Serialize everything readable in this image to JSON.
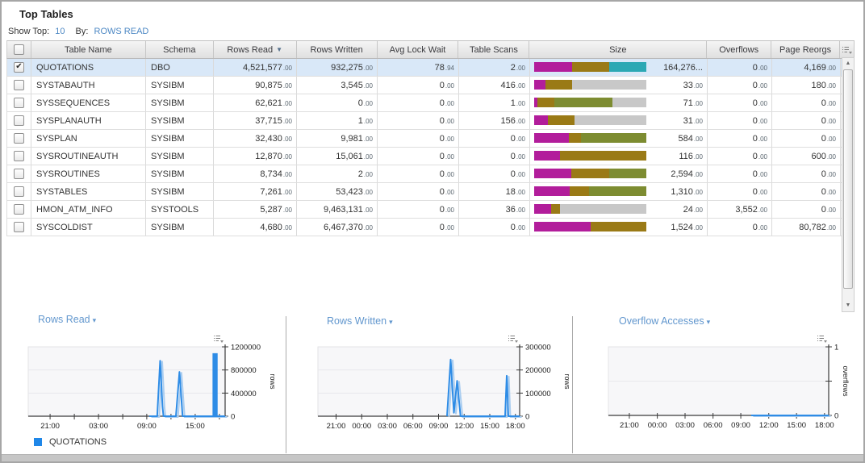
{
  "window": {
    "title": "Top Tables"
  },
  "controls": {
    "show_top_label": "Show Top:",
    "show_top_value": "10",
    "by_label": "By:",
    "by_value": "ROWS READ"
  },
  "table": {
    "columns": [
      "Table Name",
      "Schema",
      "Rows Read",
      "Rows Written",
      "Avg Lock Wait",
      "Table Scans",
      "Size",
      "Overflows",
      "Page Reorgs"
    ],
    "sorted_by": "Rows Read",
    "sort_direction": "desc",
    "rows": [
      {
        "checked": true,
        "selected": true,
        "table_name": "QUOTATIONS",
        "schema": "DBO",
        "rows_read": "4,521,577.00",
        "rows_written": "932,275.00",
        "avg_lock_wait": "78.94",
        "table_scans": "2.00",
        "size_value": "164,276...",
        "size_segments": [
          [
            "#b21d9b",
            34
          ],
          [
            "#9a7a16",
            33
          ],
          [
            "#2ba8b4",
            33
          ]
        ],
        "overflows": "0.00",
        "page_reorgs": "4,169.00"
      },
      {
        "checked": false,
        "selected": false,
        "table_name": "SYSTABAUTH",
        "schema": "SYSIBM",
        "rows_read": "90,875.00",
        "rows_written": "3,545.00",
        "avg_lock_wait": "0.00",
        "table_scans": "416.00",
        "size_value": "33.00",
        "size_segments": [
          [
            "#b21d9b",
            10
          ],
          [
            "#9a7a16",
            24
          ],
          [
            "#c8c8c8",
            66
          ]
        ],
        "overflows": "0.00",
        "page_reorgs": "180.00"
      },
      {
        "checked": false,
        "selected": false,
        "table_name": "SYSSEQUENCES",
        "schema": "SYSIBM",
        "rows_read": "62,621.00",
        "rows_written": "0.00",
        "avg_lock_wait": "0.00",
        "table_scans": "1.00",
        "size_value": "71.00",
        "size_segments": [
          [
            "#b21d9b",
            3
          ],
          [
            "#9a7a16",
            15
          ],
          [
            "#7d8c31",
            52
          ],
          [
            "#c8c8c8",
            30
          ]
        ],
        "overflows": "0.00",
        "page_reorgs": "0.00"
      },
      {
        "checked": false,
        "selected": false,
        "table_name": "SYSPLANAUTH",
        "schema": "SYSIBM",
        "rows_read": "37,715.00",
        "rows_written": "1.00",
        "avg_lock_wait": "0.00",
        "table_scans": "156.00",
        "size_value": "31.00",
        "size_segments": [
          [
            "#b21d9b",
            12
          ],
          [
            "#9a7a16",
            24
          ],
          [
            "#c8c8c8",
            64
          ]
        ],
        "overflows": "0.00",
        "page_reorgs": "0.00"
      },
      {
        "checked": false,
        "selected": false,
        "table_name": "SYSPLAN",
        "schema": "SYSIBM",
        "rows_read": "32,430.00",
        "rows_written": "9,981.00",
        "avg_lock_wait": "0.00",
        "table_scans": "0.00",
        "size_value": "584.00",
        "size_segments": [
          [
            "#b21d9b",
            31
          ],
          [
            "#9a7a16",
            11
          ],
          [
            "#7d8c31",
            58
          ]
        ],
        "overflows": "0.00",
        "page_reorgs": "0.00"
      },
      {
        "checked": false,
        "selected": false,
        "table_name": "SYSROUTINEAUTH",
        "schema": "SYSIBM",
        "rows_read": "12,870.00",
        "rows_written": "15,061.00",
        "avg_lock_wait": "0.00",
        "table_scans": "0.00",
        "size_value": "116.00",
        "size_segments": [
          [
            "#b21d9b",
            23
          ],
          [
            "#9a7a16",
            77
          ]
        ],
        "overflows": "0.00",
        "page_reorgs": "600.00"
      },
      {
        "checked": false,
        "selected": false,
        "table_name": "SYSROUTINES",
        "schema": "SYSIBM",
        "rows_read": "8,734.00",
        "rows_written": "2.00",
        "avg_lock_wait": "0.00",
        "table_scans": "0.00",
        "size_value": "2,594.00",
        "size_segments": [
          [
            "#b21d9b",
            33
          ],
          [
            "#9a7a16",
            34
          ],
          [
            "#7d8c31",
            33
          ]
        ],
        "overflows": "0.00",
        "page_reorgs": "0.00"
      },
      {
        "checked": false,
        "selected": false,
        "table_name": "SYSTABLES",
        "schema": "SYSIBM",
        "rows_read": "7,261.00",
        "rows_written": "53,423.00",
        "avg_lock_wait": "0.00",
        "table_scans": "18.00",
        "size_value": "1,310.00",
        "size_segments": [
          [
            "#b21d9b",
            32
          ],
          [
            "#9a7a16",
            17
          ],
          [
            "#7d8c31",
            51
          ]
        ],
        "overflows": "0.00",
        "page_reorgs": "0.00"
      },
      {
        "checked": false,
        "selected": false,
        "table_name": "HMON_ATM_INFO",
        "schema": "SYSTOOLS",
        "rows_read": "5,287.00",
        "rows_written": "9,463,131.00",
        "avg_lock_wait": "0.00",
        "table_scans": "36.00",
        "size_value": "24.00",
        "size_segments": [
          [
            "#b21d9b",
            15
          ],
          [
            "#9a7a16",
            8
          ],
          [
            "#c8c8c8",
            77
          ]
        ],
        "overflows": "3,552.00",
        "page_reorgs": "0.00"
      },
      {
        "checked": false,
        "selected": false,
        "table_name": "SYSCOLDIST",
        "schema": "SYSIBM",
        "rows_read": "4,680.00",
        "rows_written": "6,467,370.00",
        "avg_lock_wait": "0.00",
        "table_scans": "0.00",
        "size_value": "1,524.00",
        "size_segments": [
          [
            "#b21d9b",
            50
          ],
          [
            "#9a7a16",
            50
          ]
        ],
        "overflows": "0.00",
        "page_reorgs": "80,782.00"
      }
    ]
  },
  "chart_data": [
    {
      "type": "line",
      "title": "Rows Read",
      "ylabel": "rows",
      "ymax": 1200000,
      "yticks": [
        {
          "v": 1200000,
          "label": "1200000"
        },
        {
          "v": 800000,
          "label": "800000"
        },
        {
          "v": 400000,
          "label": "400000"
        },
        {
          "v": 0,
          "label": "0"
        }
      ],
      "xticks": [
        {
          "p": 0.111,
          "label": "21:00"
        },
        {
          "p": 0.234,
          "label": ""
        },
        {
          "p": 0.357,
          "label": "03:00"
        },
        {
          "p": 0.48,
          "label": ""
        },
        {
          "p": 0.602,
          "label": "09:00"
        },
        {
          "p": 0.725,
          "label": ""
        },
        {
          "p": 0.848,
          "label": "15:00"
        },
        {
          "p": 0.971,
          "label": ""
        }
      ],
      "series": [
        {
          "name": "QUOTATIONS",
          "color": "#2e8ce6",
          "points": [
            [
              0.615,
              0
            ],
            [
              0.655,
              0
            ],
            [
              0.67,
              960000
            ],
            [
              0.682,
              160000
            ],
            [
              0.687,
              0
            ],
            [
              0.75,
              0
            ],
            [
              0.768,
              766000
            ],
            [
              0.784,
              0
            ],
            [
              1,
              0
            ]
          ]
        }
      ],
      "bars": [
        {
          "x0": 0.936,
          "x1": 0.962,
          "v": 1090000
        }
      ],
      "legend": {
        "label": "QUOTATIONS",
        "color": "#1f87e8"
      }
    },
    {
      "type": "line",
      "title": "Rows Written",
      "ylabel": "rows",
      "ymax": 300000,
      "yticks": [
        {
          "v": 300000,
          "label": "300000"
        },
        {
          "v": 200000,
          "label": "200000"
        },
        {
          "v": 100000,
          "label": "100000"
        },
        {
          "v": 0,
          "label": "0"
        }
      ],
      "xticks": [
        {
          "p": 0.09,
          "label": "21:00"
        },
        {
          "p": 0.217,
          "label": "00:00"
        },
        {
          "p": 0.344,
          "label": "03:00"
        },
        {
          "p": 0.471,
          "label": "06:00"
        },
        {
          "p": 0.598,
          "label": "09:00"
        },
        {
          "p": 0.725,
          "label": "12:00"
        },
        {
          "p": 0.852,
          "label": "15:00"
        },
        {
          "p": 0.979,
          "label": "18:00"
        }
      ],
      "series": [
        {
          "name": "QUOTATIONS",
          "color": "#2e8ce6",
          "points": [
            [
              0.64,
              0
            ],
            [
              0.658,
              245000
            ],
            [
              0.674,
              15000
            ],
            [
              0.69,
              153000
            ],
            [
              0.707,
              0
            ],
            [
              0.928,
              0
            ],
            [
              0.936,
              175000
            ],
            [
              0.944,
              0
            ],
            [
              1,
              0
            ]
          ]
        }
      ],
      "bars": []
    },
    {
      "type": "line",
      "title": "Overflow Accesses",
      "ylabel": "overflows",
      "ymax": 1,
      "yticks": [
        {
          "v": 1,
          "label": "1"
        },
        {
          "v": 0.5,
          "label": ""
        },
        {
          "v": 0,
          "label": "0"
        }
      ],
      "xticks": [
        {
          "p": 0.095,
          "label": "21:00"
        },
        {
          "p": 0.222,
          "label": "00:00"
        },
        {
          "p": 0.348,
          "label": "03:00"
        },
        {
          "p": 0.475,
          "label": "06:00"
        },
        {
          "p": 0.601,
          "label": "09:00"
        },
        {
          "p": 0.728,
          "label": "12:00"
        },
        {
          "p": 0.854,
          "label": "15:00"
        },
        {
          "p": 0.981,
          "label": "18:00"
        }
      ],
      "series": [
        {
          "name": "QUOTATIONS",
          "color": "#2e8ce6",
          "points": [
            [
              0.648,
              0
            ],
            [
              1,
              0
            ]
          ]
        }
      ],
      "bars": []
    }
  ],
  "colors": {
    "link": "#4d88c4",
    "chart_title": "#6297ce",
    "series_line": "#2e8ce6",
    "selected_row_bg": "#d9e8f8",
    "size_magenta": "#b21d9b",
    "size_gold": "#9a7a16",
    "size_olive": "#7d8c31",
    "size_teal": "#2ba8b4",
    "size_gray": "#c8c8c8"
  }
}
